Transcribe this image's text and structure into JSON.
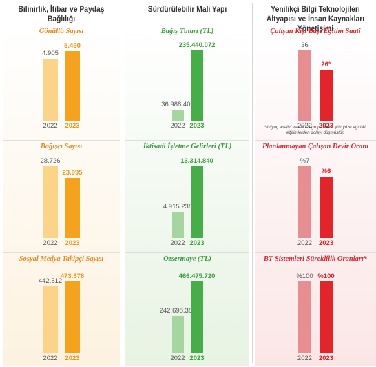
{
  "columns": [
    {
      "title": "Bilinirlik, İtibar ve Paydaş Bağlılığı"
    },
    {
      "title": "Sürdürülebilir Mali Yapı"
    },
    {
      "title": "Yenilikçi Bilgi Teknolojileri Altyapısı ve İnsan Kaynakları Yönetişimi"
    }
  ],
  "note": "*İhtiyaç analizi ve OSYS grup odaklı, yüz yüze ağırlıklı eğitimlerden dolayı düşmüştür.",
  "colors": {
    "orange_light": "#fbd48a",
    "orange_dark": "#f5a21e",
    "orange_text": "#e8941a",
    "green_light": "#a5d6a0",
    "green_dark": "#46ad48",
    "green_text": "#3a9e3e",
    "red_light": "#e78e92",
    "red_dark": "#e1252b",
    "red_text": "#d62229",
    "title_orange": "#e38a1e",
    "title_green": "#3a9a3c",
    "title_red": "#d22a2f"
  },
  "chart_data": [
    {
      "type": "bar",
      "title": "Gönüllü Sayısı",
      "categories": [
        "2022",
        "2023"
      ],
      "values": [
        4905,
        5490
      ],
      "labels": [
        "4.905",
        "5.490"
      ],
      "palette": "orange",
      "ylim": [
        0,
        5550
      ]
    },
    {
      "type": "bar",
      "title": "Bağış Tutarı (TL)",
      "categories": [
        "2022",
        "2023"
      ],
      "values": [
        36988405,
        235440072
      ],
      "labels": [
        "36.988.405",
        "235.440.072"
      ],
      "palette": "green",
      "ylim": [
        0,
        235440072
      ]
    },
    {
      "type": "bar",
      "title": "Çalışan Kişi Başı Eğitim Saati",
      "categories": [
        "2022",
        "2023"
      ],
      "values": [
        36,
        26
      ],
      "labels": [
        "36",
        "26*"
      ],
      "palette": "red",
      "ylim": [
        0,
        36
      ]
    },
    {
      "type": "bar",
      "title": "Bağışçı Sayısı",
      "categories": [
        "2022",
        "2023"
      ],
      "values": [
        28726,
        23995
      ],
      "labels": [
        "28.726",
        "23.995"
      ],
      "palette": "orange",
      "ylim": [
        0,
        28726
      ]
    },
    {
      "type": "bar",
      "title": "İktisadi İşletme Gelirleri (TL)",
      "categories": [
        "2022",
        "2023"
      ],
      "values": [
        4915238,
        13314840
      ],
      "labels": [
        "4.915.238",
        "13.314.840"
      ],
      "palette": "green",
      "ylim": [
        0,
        13314840
      ]
    },
    {
      "type": "bar",
      "title": "Planlanmayan Çalışan Devir Oranı",
      "categories": [
        "2022",
        "2023"
      ],
      "values": [
        7,
        6
      ],
      "labels": [
        "%7",
        "%6"
      ],
      "palette": "red",
      "ylim": [
        0,
        7
      ]
    },
    {
      "type": "bar",
      "title": "Sosyal Medya Takipçi Sayısı",
      "categories": [
        "2022",
        "2023"
      ],
      "values": [
        442512,
        473378
      ],
      "labels": [
        "442.512",
        "473.378"
      ],
      "palette": "orange",
      "ylim": [
        0,
        473378
      ]
    },
    {
      "type": "bar",
      "title": "Özsermaye (TL)",
      "categories": [
        "2022",
        "2023"
      ],
      "values": [
        242698386,
        466475720
      ],
      "labels": [
        "242.698.386",
        "466.475.720"
      ],
      "palette": "green",
      "ylim": [
        0,
        466475720
      ]
    },
    {
      "type": "bar",
      "title": "BT Sistemleri Süreklilik Oranları*",
      "categories": [
        "2022",
        "2023"
      ],
      "values": [
        100,
        100
      ],
      "labels": [
        "%100",
        "%100"
      ],
      "palette": "red",
      "ylim": [
        0,
        100
      ]
    }
  ]
}
